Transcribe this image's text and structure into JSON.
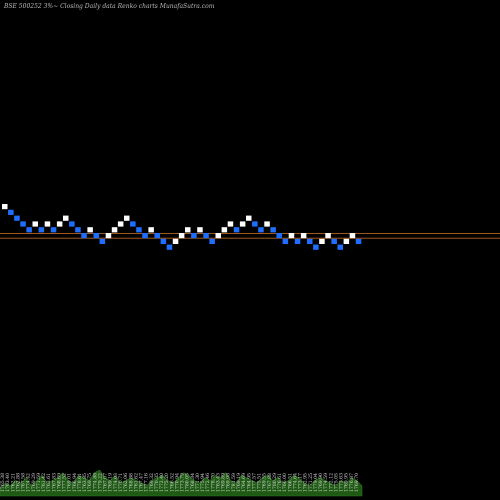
{
  "chart_data": {
    "type": "renko",
    "title": "BSE 500252  3%~  Closing Daily data  Renko  charts MunafaSutra.com",
    "colors": {
      "background": "#000000",
      "up_brick": "#ffffff",
      "down_brick": "#1e6fff",
      "reference_line": "#b5651d",
      "volume": "#1f5a14"
    },
    "bricks": [
      {
        "dir": "up",
        "level": 22
      },
      {
        "dir": "down",
        "level": 21
      },
      {
        "dir": "down",
        "level": 20
      },
      {
        "dir": "down",
        "level": 19
      },
      {
        "dir": "down",
        "level": 18
      },
      {
        "dir": "up",
        "level": 19
      },
      {
        "dir": "down",
        "level": 18
      },
      {
        "dir": "up",
        "level": 19
      },
      {
        "dir": "down",
        "level": 18
      },
      {
        "dir": "up",
        "level": 19
      },
      {
        "dir": "up",
        "level": 20
      },
      {
        "dir": "down",
        "level": 19
      },
      {
        "dir": "down",
        "level": 18
      },
      {
        "dir": "down",
        "level": 17
      },
      {
        "dir": "up",
        "level": 18
      },
      {
        "dir": "down",
        "level": 17
      },
      {
        "dir": "down",
        "level": 16
      },
      {
        "dir": "up",
        "level": 17
      },
      {
        "dir": "up",
        "level": 18
      },
      {
        "dir": "up",
        "level": 19
      },
      {
        "dir": "up",
        "level": 20
      },
      {
        "dir": "down",
        "level": 19
      },
      {
        "dir": "down",
        "level": 18
      },
      {
        "dir": "down",
        "level": 17
      },
      {
        "dir": "up",
        "level": 18
      },
      {
        "dir": "down",
        "level": 17
      },
      {
        "dir": "down",
        "level": 16
      },
      {
        "dir": "down",
        "level": 15
      },
      {
        "dir": "up",
        "level": 16
      },
      {
        "dir": "up",
        "level": 17
      },
      {
        "dir": "up",
        "level": 18
      },
      {
        "dir": "down",
        "level": 17
      },
      {
        "dir": "up",
        "level": 18
      },
      {
        "dir": "down",
        "level": 17
      },
      {
        "dir": "down",
        "level": 16
      },
      {
        "dir": "up",
        "level": 17
      },
      {
        "dir": "up",
        "level": 18
      },
      {
        "dir": "up",
        "level": 19
      },
      {
        "dir": "down",
        "level": 18
      },
      {
        "dir": "up",
        "level": 19
      },
      {
        "dir": "up",
        "level": 20
      },
      {
        "dir": "down",
        "level": 19
      },
      {
        "dir": "down",
        "level": 18
      },
      {
        "dir": "up",
        "level": 19
      },
      {
        "dir": "down",
        "level": 18
      },
      {
        "dir": "down",
        "level": 17
      },
      {
        "dir": "down",
        "level": 16
      },
      {
        "dir": "up",
        "level": 17
      },
      {
        "dir": "down",
        "level": 16
      },
      {
        "dir": "up",
        "level": 17
      },
      {
        "dir": "down",
        "level": 16
      },
      {
        "dir": "down",
        "level": 15
      },
      {
        "dir": "up",
        "level": 16
      },
      {
        "dir": "up",
        "level": 17
      },
      {
        "dir": "down",
        "level": 16
      },
      {
        "dir": "down",
        "level": 15
      },
      {
        "dir": "up",
        "level": 16
      },
      {
        "dir": "up",
        "level": 17
      },
      {
        "dir": "down",
        "level": 16
      }
    ],
    "reference_lines": [
      17.4,
      16.6
    ],
    "volume": [
      3,
      5,
      4,
      6,
      5,
      7,
      4,
      6,
      8,
      5,
      6,
      7,
      9,
      6,
      5,
      8,
      7,
      6,
      9,
      10,
      7,
      6,
      8,
      5,
      6,
      7,
      6,
      5,
      4,
      6,
      7,
      8,
      6,
      5,
      7,
      9,
      8,
      6,
      5,
      7,
      6,
      8,
      7,
      9,
      6,
      5,
      8,
      7,
      6,
      5,
      7,
      8,
      6,
      7,
      5,
      6,
      8,
      7,
      5,
      4,
      6,
      7,
      6,
      5,
      4,
      6,
      5,
      7,
      6,
      4
    ],
    "x_tick_labels": [
      "1765.38",
      "1763.40",
      "1762.21",
      "1762.88",
      "1767.58",
      "1774.42",
      "1769.29",
      "1771.59",
      "1761.42",
      "1763.61",
      "1767.83",
      "1768.69",
      "1777.52",
      "1769.01",
      "1766.94",
      "1778.61",
      "1763.85",
      "1769.75",
      "1774.88",
      "1779.22",
      "1767.07",
      "1769.19",
      "1774.03",
      "1770.71",
      "1762.06",
      "1768.88",
      "1761.62",
      "1767.47",
      "1777.16",
      "1769.32",
      "1770.35",
      "1772.40",
      "1775.20",
      "1766.52",
      "1770.94",
      "1773.79",
      "1780.05",
      "1768.34",
      "1771.30",
      "1775.94",
      "1772.46",
      "1778.70",
      "1763.43",
      "1769.89",
      "1769.98",
      "1781.59",
      "1769.19",
      "1764.69",
      "1764.95",
      "1777.57",
      "1775.51",
      "1769.55",
      "1767.88",
      "1780.29",
      "1776.61",
      "1766.00",
      "1766.51",
      "1774.64",
      "1773.17",
      "1762.95",
      "1771.25",
      "1779.04",
      "1769.90",
      "1774.59",
      "1772.12",
      "1775.05",
      "1773.63",
      "1769.95",
      "1776.87",
      "1769.70"
    ]
  }
}
